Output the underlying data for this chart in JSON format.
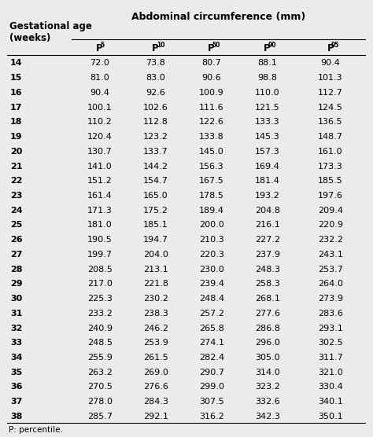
{
  "title_left": "Gestational age\n(weeks)",
  "title_main": "Abdominal circumference (mm)",
  "superscripts": [
    "5",
    "10",
    "50",
    "90",
    "95"
  ],
  "rows": [
    [
      "14",
      "72.0",
      "73.8",
      "80.7",
      "88.1",
      "90.4"
    ],
    [
      "15",
      "81.0",
      "83.0",
      "90.6",
      "98.8",
      "101.3"
    ],
    [
      "16",
      "90.4",
      "92.6",
      "100.9",
      "110.0",
      "112.7"
    ],
    [
      "17",
      "100.1",
      "102.6",
      "111.6",
      "121.5",
      "124.5"
    ],
    [
      "18",
      "110.2",
      "112.8",
      "122.6",
      "133.3",
      "136.5"
    ],
    [
      "19",
      "120.4",
      "123.2",
      "133.8",
      "145.3",
      "148.7"
    ],
    [
      "20",
      "130.7",
      "133.7",
      "145.0",
      "157.3",
      "161.0"
    ],
    [
      "21",
      "141.0",
      "144.2",
      "156.3",
      "169.4",
      "173.3"
    ],
    [
      "22",
      "151.2",
      "154.7",
      "167.5",
      "181.4",
      "185.5"
    ],
    [
      "23",
      "161.4",
      "165.0",
      "178.5",
      "193.2",
      "197.6"
    ],
    [
      "24",
      "171.3",
      "175.2",
      "189.4",
      "204.8",
      "209.4"
    ],
    [
      "25",
      "181.0",
      "185.1",
      "200.0",
      "216.1",
      "220.9"
    ],
    [
      "26",
      "190.5",
      "194.7",
      "210.3",
      "227.2",
      "232.2"
    ],
    [
      "27",
      "199.7",
      "204.0",
      "220.3",
      "237.9",
      "243.1"
    ],
    [
      "28",
      "208.5",
      "213.1",
      "230.0",
      "248.3",
      "253.7"
    ],
    [
      "29",
      "217.0",
      "221.8",
      "239.4",
      "258.3",
      "264.0"
    ],
    [
      "30",
      "225.3",
      "230.2",
      "248.4",
      "268.1",
      "273.9"
    ],
    [
      "31",
      "233.2",
      "238.3",
      "257.2",
      "277.6",
      "283.6"
    ],
    [
      "32",
      "240.9",
      "246.2",
      "265.8",
      "286.8",
      "293.1"
    ],
    [
      "33",
      "248.5",
      "253.9",
      "274.1",
      "296.0",
      "302.5"
    ],
    [
      "34",
      "255.9",
      "261.5",
      "282.4",
      "305.0",
      "311.7"
    ],
    [
      "35",
      "263.2",
      "269.0",
      "290.7",
      "314.0",
      "321.0"
    ],
    [
      "36",
      "270.5",
      "276.6",
      "299.0",
      "323.2",
      "330.4"
    ],
    [
      "37",
      "278.0",
      "284.3",
      "307.5",
      "332.6",
      "340.1"
    ],
    [
      "38",
      "285.7",
      "292.1",
      "316.2",
      "342.3",
      "350.1"
    ]
  ],
  "footer": "P: percentile.",
  "bg_color": "#ebebeb",
  "fontsize_data": 8.0,
  "fontsize_header": 8.5,
  "fontsize_title": 9.0,
  "fontsize_footer": 7.5
}
